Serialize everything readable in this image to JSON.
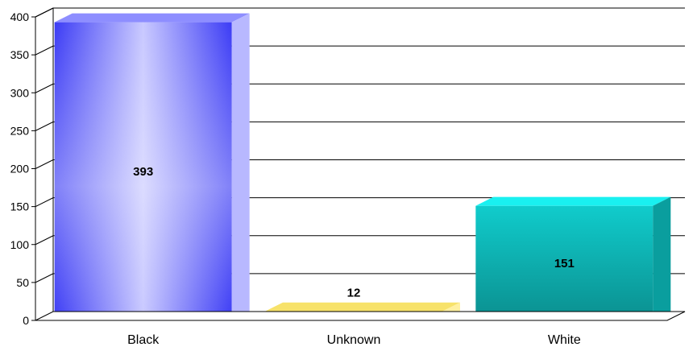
{
  "chart_data": {
    "type": "bar",
    "categories": [
      "Black",
      "Unknown",
      "White"
    ],
    "values": [
      393,
      12,
      151
    ],
    "data_labels": [
      "393",
      "12",
      "151"
    ],
    "ylim": [
      0,
      400
    ],
    "yticks": [
      "0",
      "50",
      "100",
      "150",
      "200",
      "250",
      "300",
      "350",
      "400"
    ],
    "grid": true,
    "legend": "none",
    "style": "3d-bar",
    "colors": {
      "Black": "#4b4bff",
      "Unknown": "#f2d21b",
      "White": "#12b8b8"
    }
  }
}
